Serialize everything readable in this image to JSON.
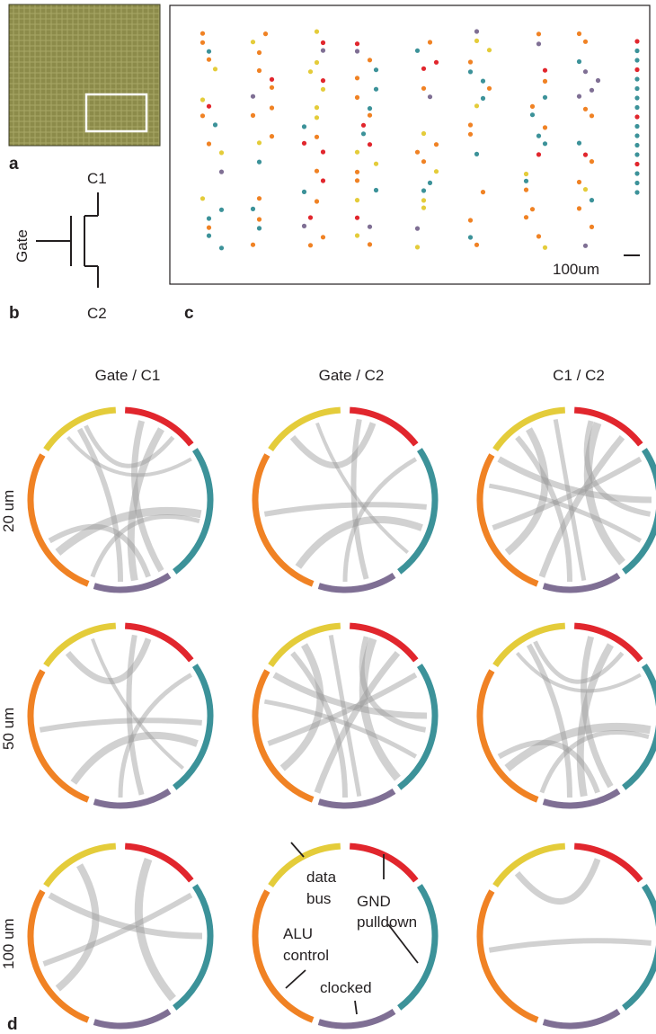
{
  "panel_labels": {
    "a": "a",
    "b": "b",
    "c": "c",
    "d": "d"
  },
  "colors": {
    "data_bus": "#e4cc3a",
    "gnd_pulldown": "#e1262d",
    "teal": "#3c9299",
    "clocked": "#7f6f94",
    "alu_control": "#f08224",
    "chord": "#9a9a9a",
    "chip_bg": "#8c8b4a"
  },
  "transistor": {
    "c1": "C1",
    "c2": "C2",
    "gate": "Gate"
  },
  "scalebar": {
    "label": "100um"
  },
  "columns": [
    "Gate / C1",
    "Gate / C2",
    "C1 / C2"
  ],
  "rows": [
    "20 um",
    "50 um",
    "100 um"
  ],
  "annotations": {
    "data_bus_1": "data",
    "data_bus_2": "bus",
    "gnd_1": "GND",
    "gnd_2": "pulldown",
    "alu_1": "ALU",
    "alu_2": "control",
    "clocked": "clocked"
  }
}
